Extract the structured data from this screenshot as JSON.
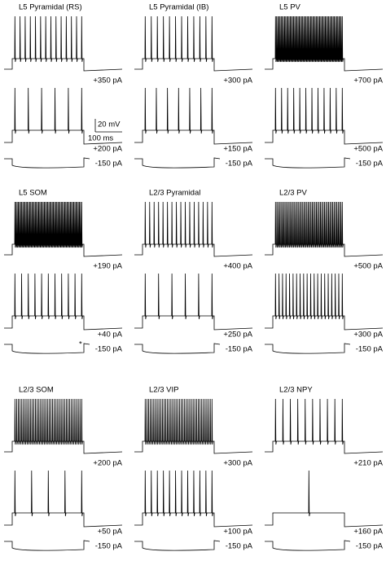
{
  "panels": [
    {
      "title": "L5 Pyramidal (RS)",
      "labels": [
        "+350 pA",
        "+200 pA",
        "-150 pA"
      ]
    },
    {
      "title": "L5 Pyramidal (IB)",
      "labels": [
        "+300 pA",
        "+150 pA",
        "-150 pA"
      ]
    },
    {
      "title": "L5 PV",
      "labels": [
        "+700 pA",
        "+500 pA",
        "-150 pA"
      ]
    },
    {
      "title": "L5 SOM",
      "labels": [
        "+190 pA",
        "+40 pA",
        "-150 pA"
      ],
      "note": "*"
    },
    {
      "title": "L2/3 Pyramidal",
      "labels": [
        "+400 pA",
        "+250 pA",
        "-150 pA"
      ]
    },
    {
      "title": "L2/3 PV",
      "labels": [
        "+500 pA",
        "+300 pA",
        "-150 pA"
      ]
    },
    {
      "title": "L2/3 SOM",
      "labels": [
        "+200 pA",
        "+50 pA",
        "-150 pA"
      ]
    },
    {
      "title": "L2/3 VIP",
      "labels": [
        "+300 pA",
        "+100 pA",
        "-150 pA"
      ]
    },
    {
      "title": "L2/3 NPY",
      "labels": [
        "+210 pA",
        "+160 pA",
        "-150 pA"
      ]
    }
  ],
  "scale_bar": {
    "voltage": "20 mV",
    "time": "100 ms"
  }
}
